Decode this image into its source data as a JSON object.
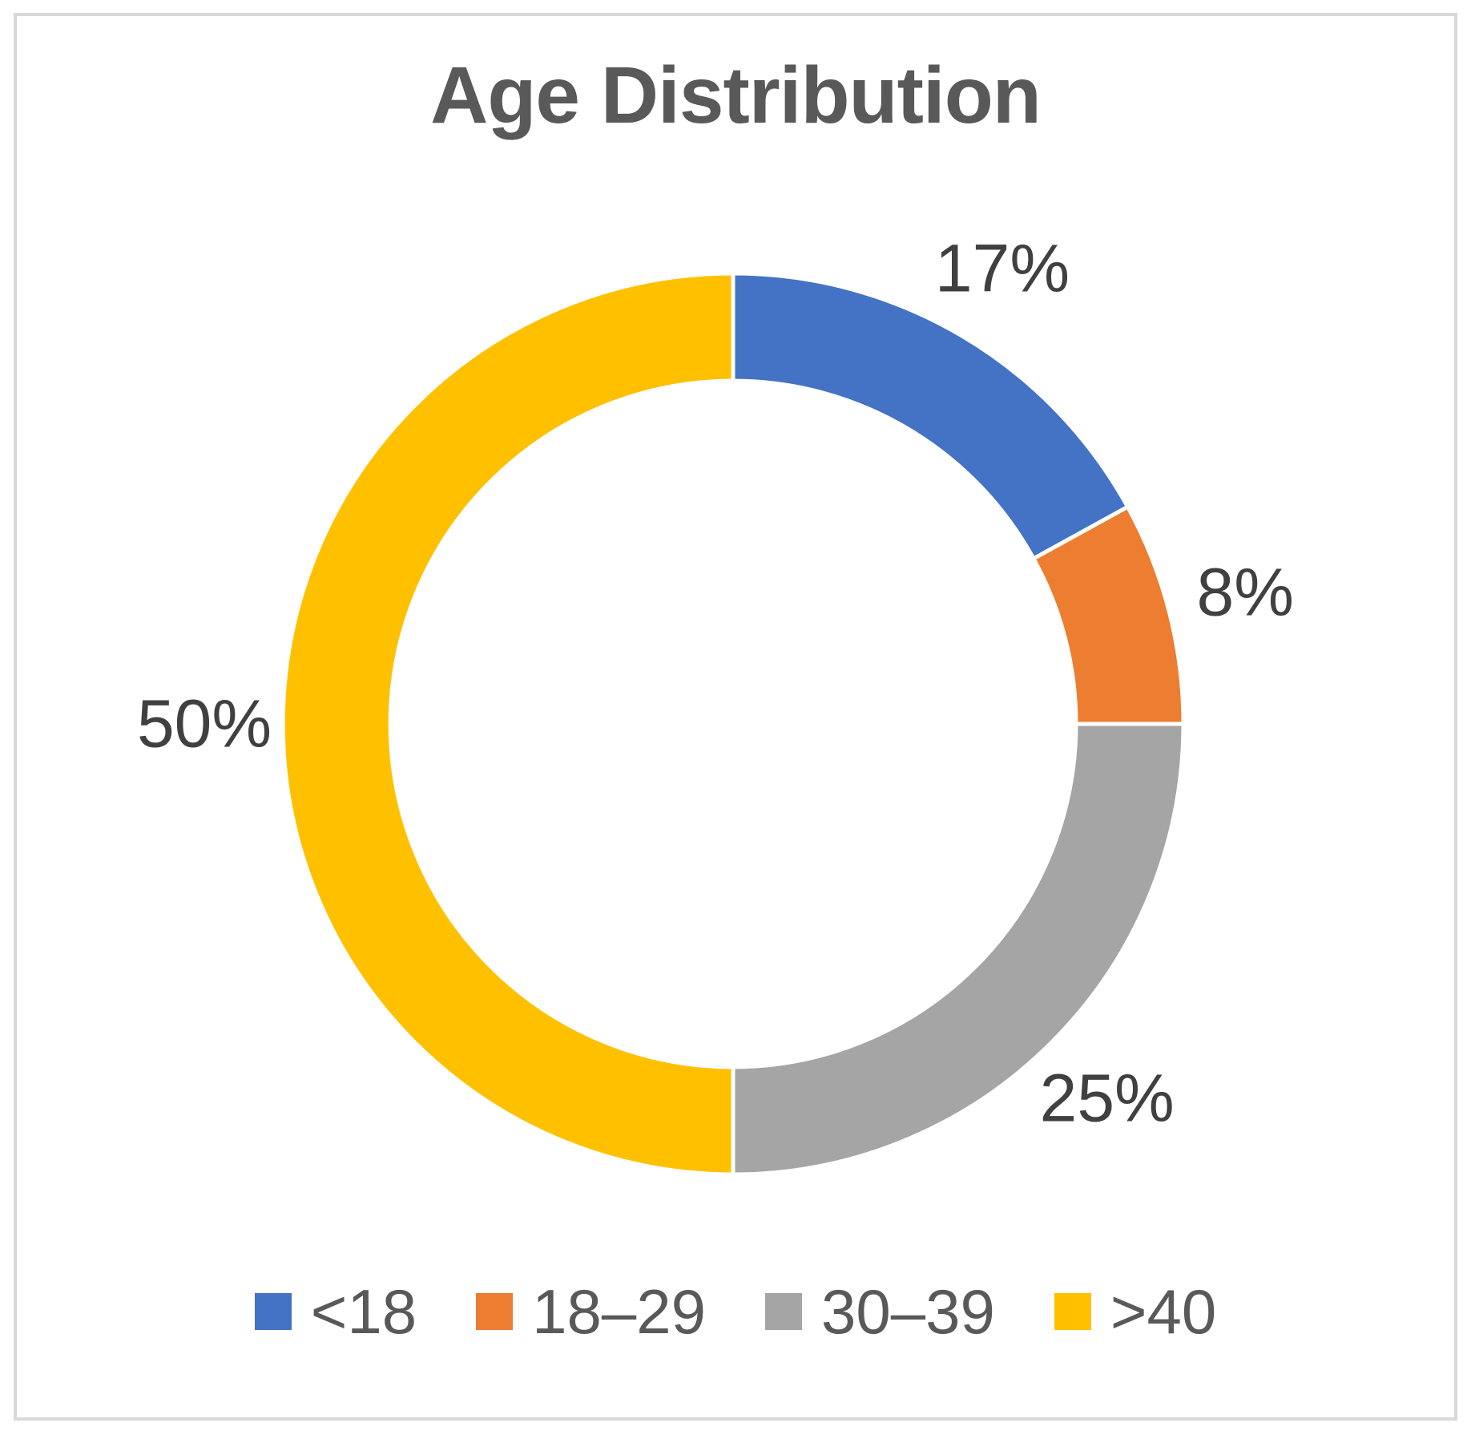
{
  "chart_data": {
    "type": "pie",
    "subtype": "doughnut",
    "title": "Age Distribution",
    "categories": [
      "<18",
      "18–29",
      "30–39",
      ">40"
    ],
    "values": [
      17,
      8,
      25,
      50
    ],
    "data_labels": [
      "17%",
      "8%",
      "25%",
      "50%"
    ],
    "colors": [
      "#4472C4",
      "#ED7D31",
      "#A5A5A5",
      "#FFC000"
    ],
    "start_angle_deg": 0,
    "direction": "clockwise",
    "hole_ratio": 0.76,
    "separator_color": "#FFFFFF",
    "legend_position": "bottom",
    "title_color": "#595959",
    "data_label_color": "#404040",
    "legend_text_color": "#595959",
    "frame_border_color": "#D9D9D9"
  }
}
